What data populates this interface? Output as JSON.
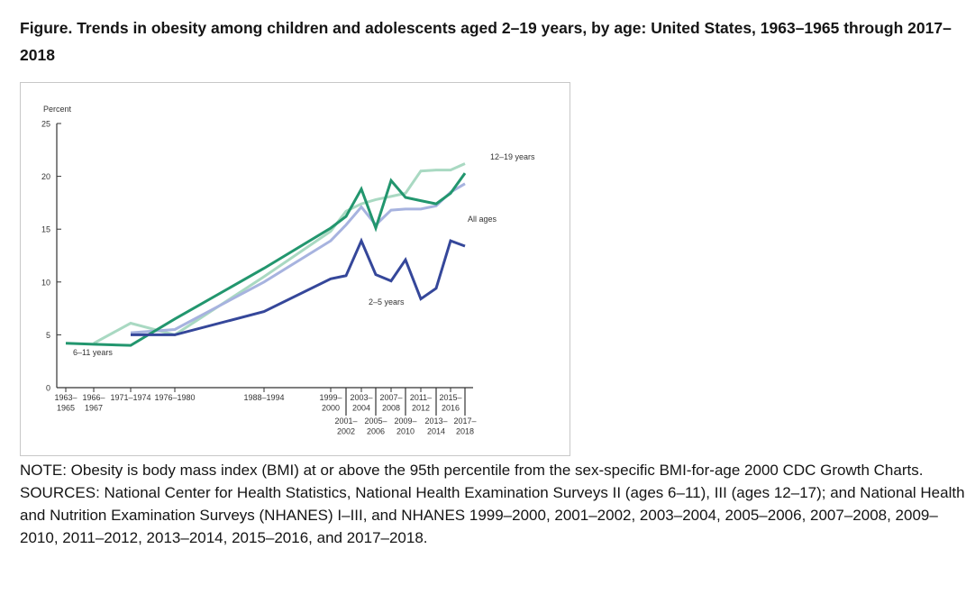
{
  "title": "Figure. Trends in obesity among children and adolescents aged 2–19 years, by age: United States, 1963–1965 through 2017–2018",
  "note": "NOTE: Obesity is body mass index (BMI) at or above the 95th percentile from the sex-specific BMI-for-age 2000 CDC Growth Charts.",
  "sources": "SOURCES: National Center for Health Statistics, National Health Examination Surveys II (ages 6–11), III (ages 12–17); and National Health and Nutrition Examination Surveys (NHANES) I–III, and NHANES 1999–2000, 2001–2002, 2003–2004, 2005–2006, 2007–2008, 2009–2010, 2011–2012, 2013–2014, 2015–2016, and 2017–2018.",
  "chart_data": {
    "type": "line",
    "title": "",
    "ylabel": "Percent",
    "xlabel": "",
    "ylim": [
      0,
      25
    ],
    "yticks": [
      0,
      5,
      10,
      15,
      20,
      25
    ],
    "grid": false,
    "categories": [
      {
        "label": [
          "1963–",
          "1965"
        ],
        "row": 0
      },
      {
        "label": [
          "1966–",
          "1967"
        ],
        "row": 0
      },
      {
        "label": [
          "1971–1974"
        ],
        "row": 0
      },
      {
        "label": [
          "1976–1980"
        ],
        "row": 0
      },
      {
        "label": [
          "1988–1994"
        ],
        "row": 0
      },
      {
        "label": [
          "1999–",
          "2000"
        ],
        "row": 0
      },
      {
        "label": [
          "2001–",
          "2002"
        ],
        "row": 1
      },
      {
        "label": [
          "2003–",
          "2004"
        ],
        "row": 0
      },
      {
        "label": [
          "2005–",
          "2006"
        ],
        "row": 1
      },
      {
        "label": [
          "2007–",
          "2008"
        ],
        "row": 0
      },
      {
        "label": [
          "2009–",
          "2010"
        ],
        "row": 1
      },
      {
        "label": [
          "2011–",
          "2012"
        ],
        "row": 0
      },
      {
        "label": [
          "2013–",
          "2014"
        ],
        "row": 1
      },
      {
        "label": [
          "2015–",
          "2016"
        ],
        "row": 0
      },
      {
        "label": [
          "2017–",
          "2018"
        ],
        "row": 1
      }
    ],
    "series": [
      {
        "name": "12–19 years",
        "color": "#a9d9c2",
        "values": [
          null,
          4.2,
          6.1,
          5.0,
          10.5,
          14.8,
          16.7,
          17.4,
          17.8,
          18.1,
          18.4,
          20.5,
          20.6,
          20.6,
          21.2
        ]
      },
      {
        "name": "All ages",
        "color": "#a7b3df",
        "values": [
          null,
          null,
          5.2,
          5.5,
          10.0,
          13.9,
          15.4,
          17.1,
          15.4,
          16.8,
          16.9,
          16.9,
          17.2,
          18.5,
          19.3
        ]
      },
      {
        "name": "6–11 years",
        "color": "#22966e",
        "values": [
          4.2,
          4.1,
          4.0,
          6.5,
          11.3,
          15.1,
          16.2,
          18.8,
          15.1,
          19.6,
          18.0,
          17.7,
          17.4,
          18.4,
          20.3
        ]
      },
      {
        "name": "2–5 years",
        "color": "#35479a",
        "values": [
          null,
          null,
          5.0,
          5.0,
          7.2,
          10.3,
          10.6,
          13.9,
          10.7,
          10.1,
          12.1,
          8.4,
          9.4,
          13.9,
          13.4
        ]
      }
    ],
    "legend": "inline labels next to lines"
  }
}
